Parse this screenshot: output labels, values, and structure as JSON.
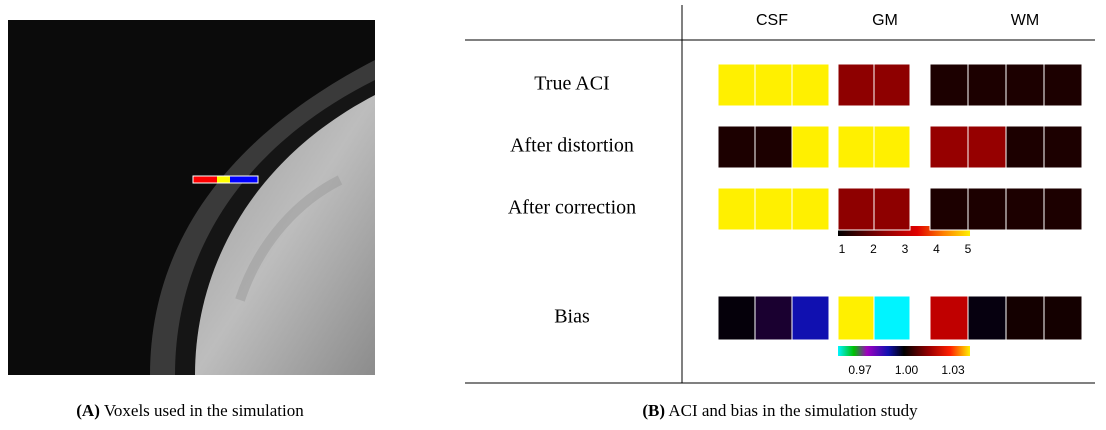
{
  "panel_a": {
    "caption": {
      "label": "(A)",
      "text": "Voxels used in the simulation"
    }
  },
  "panel_b": {
    "caption": {
      "label": "(B)",
      "text": "ACI and bias in the simulation study"
    },
    "columns": [
      "CSF",
      "GM",
      "WM"
    ],
    "rows": [
      {
        "label": "True ACI",
        "colors": [
          "#fff000",
          "#fff000",
          "#fff000",
          "#8e0000",
          "#8e0000",
          "#1c0000",
          "#1c0000",
          "#1c0000",
          "#1c0000"
        ]
      },
      {
        "label": "After distortion",
        "colors": [
          "#1c0000",
          "#1c0000",
          "#fff000",
          "#fff000",
          "#fff000",
          "#960000",
          "#960000",
          "#1c0000",
          "#1c0000"
        ]
      },
      {
        "label": "After correction",
        "colors": [
          "#fff000",
          "#fff000",
          "#fff000",
          "#8e0000",
          "#8e0000",
          "#1c0000",
          "#1c0000",
          "#1c0000",
          "#1c0000"
        ]
      },
      {
        "label": "Bias",
        "colors": [
          "#05000a",
          "#1a0030",
          "#1010b0",
          "#fff000",
          "#00f4ff",
          "#c00000",
          "#06000f",
          "#140000",
          "#140000"
        ]
      }
    ],
    "aci_colorbar": {
      "ticks": [
        "1",
        "2",
        "3",
        "4",
        "5"
      ]
    },
    "bias_colorbar": {
      "ticks": [
        "0.97",
        "1.00",
        "1.03"
      ]
    }
  }
}
